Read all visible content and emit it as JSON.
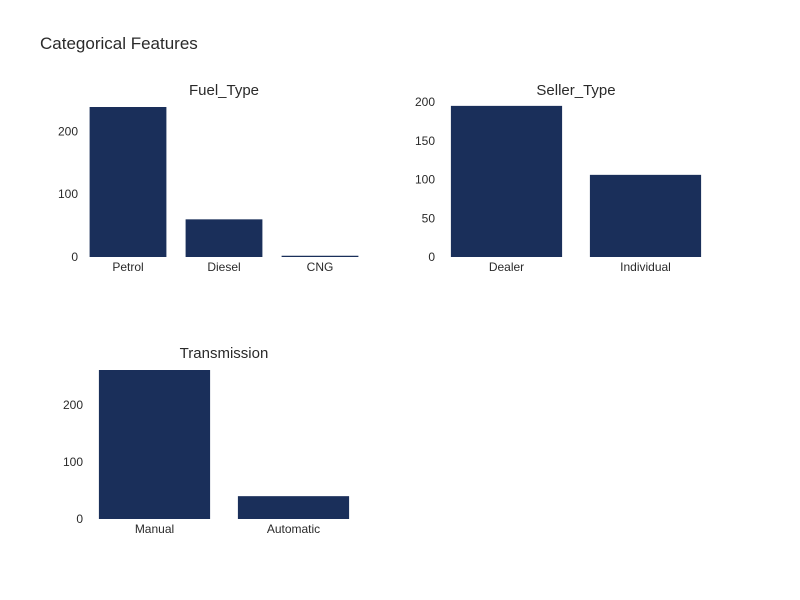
{
  "page": {
    "title": "Categorical Features"
  },
  "colors": {
    "bar": "#1a2f5a",
    "text": "#2a2a2a"
  },
  "chart_data": [
    {
      "type": "bar",
      "title": "Fuel_Type",
      "categories": [
        "Petrol",
        "Diesel",
        "CNG"
      ],
      "values": [
        239,
        60,
        2
      ],
      "yticks": [
        0,
        100,
        200
      ],
      "ylim": [
        0,
        239
      ],
      "grid": false,
      "xlabel": "",
      "ylabel": ""
    },
    {
      "type": "bar",
      "title": "Seller_Type",
      "categories": [
        "Dealer",
        "Individual"
      ],
      "values": [
        195,
        106
      ],
      "yticks": [
        0,
        50,
        100,
        150,
        200
      ],
      "ylim": [
        0,
        200
      ],
      "grid": false,
      "xlabel": "",
      "ylabel": ""
    },
    {
      "type": "bar",
      "title": "Transmission",
      "categories": [
        "Manual",
        "Automatic"
      ],
      "values": [
        261,
        40
      ],
      "yticks": [
        0,
        100,
        200
      ],
      "ylim": [
        0,
        261
      ],
      "grid": false,
      "xlabel": "",
      "ylabel": ""
    }
  ]
}
